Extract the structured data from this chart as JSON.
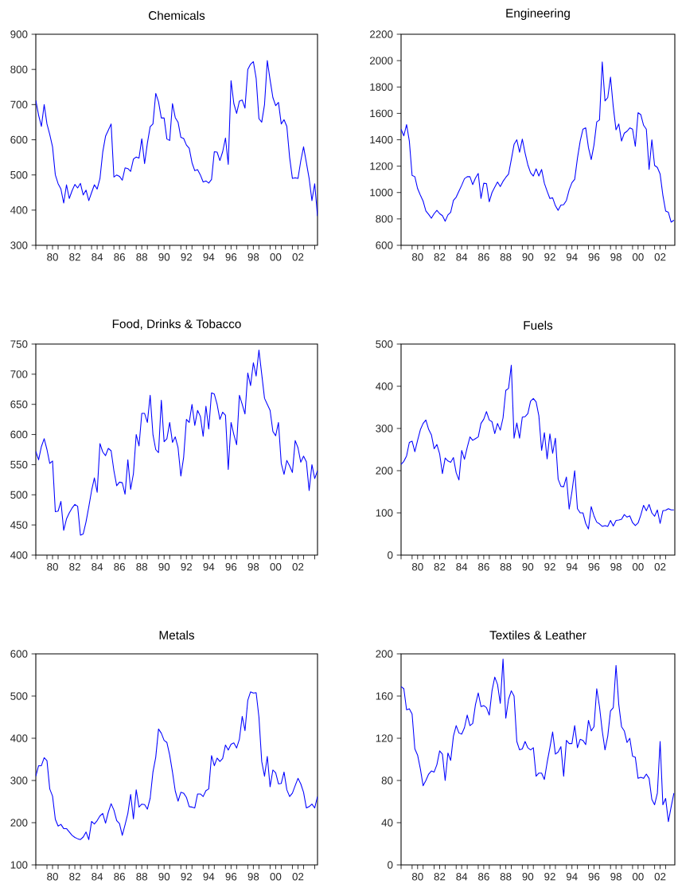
{
  "chart_data": [
    {
      "type": "line",
      "title": "Chemicals",
      "color": "#0000ff",
      "x": [
        "1979-01",
        "1979-04",
        "1979-07",
        "1979-10",
        "1980-01",
        "1980-04",
        "1980-07",
        "1980-10",
        "1981-01",
        "1981-04",
        "1981-07",
        "1981-10",
        "1982-01",
        "1982-04",
        "1982-07",
        "1982-10",
        "1983-01",
        "1983-04",
        "1983-07",
        "1983-10",
        "1984-01",
        "1984-04",
        "1984-07",
        "1984-10",
        "1985-01",
        "1985-04",
        "1985-07",
        "1985-10",
        "1986-01",
        "1986-04",
        "1986-07",
        "1986-10",
        "1987-01",
        "1987-04",
        "1987-07",
        "1987-10",
        "1988-01",
        "1988-04",
        "1988-07",
        "1988-10",
        "1989-01",
        "1989-04",
        "1989-07",
        "1989-10",
        "1990-01",
        "1990-04",
        "1990-07",
        "1990-10",
        "1991-01",
        "1991-04",
        "1991-07",
        "1991-10",
        "1992-01",
        "1992-04",
        "1992-07",
        "1992-10",
        "1993-01",
        "1993-04",
        "1993-07",
        "1993-10",
        "1994-01",
        "1994-04",
        "1994-07",
        "1994-10",
        "1995-01",
        "1995-04",
        "1995-07",
        "1995-10",
        "1996-01",
        "1996-04",
        "1996-07",
        "1996-10",
        "1997-01",
        "1997-04",
        "1997-07",
        "1997-10",
        "1998-01",
        "1998-04",
        "1998-07",
        "1998-10",
        "1999-01",
        "1999-04",
        "1999-07",
        "1999-10",
        "2000-01",
        "2000-04",
        "2000-07",
        "2000-10",
        "2001-01",
        "2001-04",
        "2001-07",
        "2001-10",
        "2002-01",
        "2002-04",
        "2002-07",
        "2002-10",
        "2003-01",
        "2003-04",
        "2003-07",
        "2003-10",
        "2004-01",
        "2004-04"
      ],
      "values": [
        712,
        670,
        638,
        700,
        645,
        615,
        580,
        500,
        475,
        460,
        420,
        472,
        433,
        455,
        473,
        463,
        476,
        443,
        457,
        427,
        450,
        472,
        460,
        490,
        565,
        610,
        627,
        645,
        494,
        500,
        496,
        485,
        520,
        518,
        510,
        545,
        551,
        548,
        603,
        532,
        590,
        637,
        645,
        732,
        708,
        662,
        662,
        602,
        598,
        703,
        663,
        650,
        607,
        604,
        585,
        576,
        535,
        512,
        515,
        500,
        480,
        483,
        477,
        487,
        566,
        565,
        541,
        566,
        605,
        530,
        768,
        703,
        675,
        710,
        713,
        690,
        800,
        815,
        822,
        775,
        660,
        650,
        700,
        825,
        770,
        720,
        697,
        706,
        645,
        657,
        638,
        550,
        490,
        492,
        490,
        540,
        580,
        535,
        490,
        427,
        475,
        383
      ],
      "xlim": [
        "1979-01",
        "2004-04"
      ],
      "xticks": [
        {
          "value": "1979",
          "label": null
        },
        {
          "value": "1980",
          "label": null
        },
        {
          "value": "1981",
          "label": null
        },
        {
          "value": "1982",
          "label": null
        },
        {
          "value": "1983",
          "label": null
        },
        {
          "value": "1984",
          "label": null
        },
        {
          "value": "1985",
          "label": null
        },
        {
          "value": "1986",
          "label": null
        },
        {
          "value": "1987",
          "label": null
        },
        {
          "value": "1988",
          "label": null
        },
        {
          "value": "1989",
          "label": null
        },
        {
          "value": "1990",
          "label": null
        },
        {
          "value": "1991",
          "label": null
        },
        {
          "value": "1992",
          "label": null
        },
        {
          "value": "1993",
          "label": null
        },
        {
          "value": "1994",
          "label": null
        },
        {
          "value": "1995",
          "label": null
        },
        {
          "value": "1996",
          "label": null
        },
        {
          "value": "1997",
          "label": null
        },
        {
          "value": "1998",
          "label": null
        },
        {
          "value": "1999",
          "label": null
        },
        {
          "value": "2000",
          "label": null
        },
        {
          "value": "2001",
          "label": null
        },
        {
          "value": "2002",
          "label": null
        },
        {
          "value": "2003",
          "label": null
        },
        {
          "value": "2004",
          "label": null
        },
        {
          "value": "1980-07",
          "label": "80"
        },
        {
          "value": "1982-07",
          "label": "82"
        },
        {
          "value": "1984-07",
          "label": "84"
        },
        {
          "value": "1986-07",
          "label": "86"
        },
        {
          "value": "1988-07",
          "label": "88"
        },
        {
          "value": "1990-07",
          "label": "90"
        },
        {
          "value": "1992-07",
          "label": "92"
        },
        {
          "value": "1994-07",
          "label": "94"
        },
        {
          "value": "1996-07",
          "label": "96"
        },
        {
          "value": "1998-07",
          "label": "98"
        },
        {
          "value": "2000-07",
          "label": "00"
        },
        {
          "value": "2002-07",
          "label": "02"
        }
      ],
      "ylim": [
        300,
        900
      ],
      "yticks": [
        300,
        400,
        500,
        600,
        700,
        800,
        900
      ]
    },
    {
      "type": "line",
      "title": "Engineering",
      "color": "#0000ff",
      "x": [
        "1979-01",
        "1979-04",
        "1979-07",
        "1979-10",
        "1980-01",
        "1980-04",
        "1980-07",
        "1980-10",
        "1981-01",
        "1981-04",
        "1981-07",
        "1981-10",
        "1982-01",
        "1982-04",
        "1982-07",
        "1982-10",
        "1983-01",
        "1983-04",
        "1983-07",
        "1983-10",
        "1984-01",
        "1984-04",
        "1984-07",
        "1984-10",
        "1985-01",
        "1985-04",
        "1985-07",
        "1985-10",
        "1986-01",
        "1986-04",
        "1986-07",
        "1986-10",
        "1987-01",
        "1987-04",
        "1987-07",
        "1987-10",
        "1988-01",
        "1988-04",
        "1988-07",
        "1988-10",
        "1989-01",
        "1989-04",
        "1989-07",
        "1989-10",
        "1990-01",
        "1990-04",
        "1990-07",
        "1990-10",
        "1991-01",
        "1991-04",
        "1991-07",
        "1991-10",
        "1992-01",
        "1992-04",
        "1992-07",
        "1992-10",
        "1993-01",
        "1993-04",
        "1993-07",
        "1993-10",
        "1994-01",
        "1994-04",
        "1994-07",
        "1994-10",
        "1995-01",
        "1995-04",
        "1995-07",
        "1995-10",
        "1996-01",
        "1996-04",
        "1996-07",
        "1996-10",
        "1997-01",
        "1997-04",
        "1997-07",
        "1997-10",
        "1998-01",
        "1998-04",
        "1998-07",
        "1998-10",
        "1999-01",
        "1999-04",
        "1999-07",
        "1999-10",
        "2000-01",
        "2000-04",
        "2000-07",
        "2000-10",
        "2001-01",
        "2001-04",
        "2001-07",
        "2001-10",
        "2002-01",
        "2002-04",
        "2002-07",
        "2002-10",
        "2003-01",
        "2003-04",
        "2003-07",
        "2003-10"
      ],
      "values": [
        1480,
        1430,
        1515,
        1390,
        1130,
        1120,
        1030,
        980,
        935,
        860,
        835,
        805,
        840,
        865,
        840,
        825,
        782,
        830,
        850,
        940,
        965,
        1010,
        1055,
        1105,
        1120,
        1120,
        1060,
        1110,
        1145,
        955,
        1070,
        1068,
        930,
        1000,
        1040,
        1080,
        1045,
        1085,
        1115,
        1140,
        1250,
        1365,
        1400,
        1305,
        1405,
        1300,
        1210,
        1150,
        1125,
        1180,
        1125,
        1175,
        1070,
        1010,
        955,
        960,
        900,
        865,
        905,
        908,
        940,
        1020,
        1075,
        1100,
        1260,
        1390,
        1480,
        1490,
        1340,
        1250,
        1360,
        1535,
        1550,
        1990,
        1695,
        1720,
        1875,
        1650,
        1475,
        1520,
        1390,
        1450,
        1465,
        1490,
        1480,
        1350,
        1605,
        1590,
        1510,
        1480,
        1175,
        1400,
        1205,
        1190,
        1140,
        980,
        860,
        850,
        775,
        790
      ],
      "xlim": [
        "1979-01",
        "2003-11"
      ],
      "xticks": [
        {
          "value": "1979",
          "label": null
        },
        {
          "value": "1980",
          "label": null
        },
        {
          "value": "1981",
          "label": null
        },
        {
          "value": "1982",
          "label": null
        },
        {
          "value": "1983",
          "label": null
        },
        {
          "value": "1984",
          "label": null
        },
        {
          "value": "1985",
          "label": null
        },
        {
          "value": "1986",
          "label": null
        },
        {
          "value": "1987",
          "label": null
        },
        {
          "value": "1988",
          "label": null
        },
        {
          "value": "1989",
          "label": null
        },
        {
          "value": "1990",
          "label": null
        },
        {
          "value": "1991",
          "label": null
        },
        {
          "value": "1992",
          "label": null
        },
        {
          "value": "1993",
          "label": null
        },
        {
          "value": "1994",
          "label": null
        },
        {
          "value": "1995",
          "label": null
        },
        {
          "value": "1996",
          "label": null
        },
        {
          "value": "1997",
          "label": null
        },
        {
          "value": "1998",
          "label": null
        },
        {
          "value": "1999",
          "label": null
        },
        {
          "value": "2000",
          "label": null
        },
        {
          "value": "2001",
          "label": null
        },
        {
          "value": "2002",
          "label": null
        },
        {
          "value": "2003",
          "label": null
        },
        {
          "value": "1980-07",
          "label": "80"
        },
        {
          "value": "1982-07",
          "label": "82"
        },
        {
          "value": "1984-07",
          "label": "84"
        },
        {
          "value": "1986-07",
          "label": "86"
        },
        {
          "value": "1988-07",
          "label": "88"
        },
        {
          "value": "1990-07",
          "label": "90"
        },
        {
          "value": "1992-07",
          "label": "92"
        },
        {
          "value": "1994-07",
          "label": "94"
        },
        {
          "value": "1996-07",
          "label": "96"
        },
        {
          "value": "1998-07",
          "label": "98"
        },
        {
          "value": "2000-07",
          "label": "00"
        },
        {
          "value": "2002-07",
          "label": "02"
        }
      ],
      "ylim": [
        600,
        2200
      ],
      "yticks": [
        600,
        800,
        1000,
        1200,
        1400,
        1600,
        1800,
        2000,
        2200
      ]
    },
    {
      "type": "line",
      "title": "Food, Drinks & Tobacco",
      "color": "#0000ff",
      "x": [
        "1979-01",
        "1979-04",
        "1979-07",
        "1979-10",
        "1980-01",
        "1980-04",
        "1980-07",
        "1980-10",
        "1981-01",
        "1981-04",
        "1981-07",
        "1981-10",
        "1982-01",
        "1982-04",
        "1982-07",
        "1982-10",
        "1983-01",
        "1983-04",
        "1983-07",
        "1983-10",
        "1984-01",
        "1984-04",
        "1984-07",
        "1984-10",
        "1985-01",
        "1985-04",
        "1985-07",
        "1985-10",
        "1986-01",
        "1986-04",
        "1986-07",
        "1986-10",
        "1987-01",
        "1987-04",
        "1987-07",
        "1987-10",
        "1988-01",
        "1988-04",
        "1988-07",
        "1988-10",
        "1989-01",
        "1989-04",
        "1989-07",
        "1989-10",
        "1990-01",
        "1990-04",
        "1990-07",
        "1990-10",
        "1991-01",
        "1991-04",
        "1991-07",
        "1991-10",
        "1992-01",
        "1992-04",
        "1992-07",
        "1992-10",
        "1993-01",
        "1993-04",
        "1993-07",
        "1993-10",
        "1994-01",
        "1994-04",
        "1994-07",
        "1994-10",
        "1995-01",
        "1995-04",
        "1995-07",
        "1995-10",
        "1996-01",
        "1996-04",
        "1996-07",
        "1996-10",
        "1997-01",
        "1997-04",
        "1997-07",
        "1997-10",
        "1998-01",
        "1998-04",
        "1998-07",
        "1998-10",
        "1999-01",
        "1999-04",
        "1999-07",
        "1999-10",
        "2000-01",
        "2000-04",
        "2000-07",
        "2000-10",
        "2001-01",
        "2001-04",
        "2001-07",
        "2001-10",
        "2002-01",
        "2002-04",
        "2002-07",
        "2002-10",
        "2003-01",
        "2003-04",
        "2003-07",
        "2003-10",
        "2004-01",
        "2004-04"
      ],
      "values": [
        572,
        558,
        580,
        593,
        575,
        552,
        556,
        472,
        473,
        489,
        441,
        460,
        470,
        478,
        484,
        481,
        433,
        435,
        455,
        480,
        507,
        528,
        504,
        585,
        571,
        565,
        577,
        573,
        540,
        515,
        521,
        520,
        501,
        558,
        509,
        535,
        600,
        581,
        635,
        635,
        620,
        665,
        600,
        575,
        570,
        657,
        588,
        593,
        620,
        587,
        596,
        578,
        531,
        562,
        625,
        620,
        650,
        615,
        640,
        630,
        597,
        647,
        609,
        669,
        667,
        650,
        625,
        637,
        632,
        542,
        620,
        600,
        583,
        665,
        650,
        634,
        702,
        681,
        719,
        697,
        740,
        700,
        660,
        650,
        640,
        605,
        598,
        620,
        552,
        534,
        557,
        548,
        537,
        590,
        578,
        554,
        564,
        555,
        507,
        550,
        527,
        540
      ],
      "xlim": [
        "1979-01",
        "2004-04"
      ],
      "xticks": [
        {
          "value": "1979",
          "label": null
        },
        {
          "value": "1980",
          "label": null
        },
        {
          "value": "1981",
          "label": null
        },
        {
          "value": "1982",
          "label": null
        },
        {
          "value": "1983",
          "label": null
        },
        {
          "value": "1984",
          "label": null
        },
        {
          "value": "1985",
          "label": null
        },
        {
          "value": "1986",
          "label": null
        },
        {
          "value": "1987",
          "label": null
        },
        {
          "value": "1988",
          "label": null
        },
        {
          "value": "1989",
          "label": null
        },
        {
          "value": "1990",
          "label": null
        },
        {
          "value": "1991",
          "label": null
        },
        {
          "value": "1992",
          "label": null
        },
        {
          "value": "1993",
          "label": null
        },
        {
          "value": "1994",
          "label": null
        },
        {
          "value": "1995",
          "label": null
        },
        {
          "value": "1996",
          "label": null
        },
        {
          "value": "1997",
          "label": null
        },
        {
          "value": "1998",
          "label": null
        },
        {
          "value": "1999",
          "label": null
        },
        {
          "value": "2000",
          "label": null
        },
        {
          "value": "2001",
          "label": null
        },
        {
          "value": "2002",
          "label": null
        },
        {
          "value": "2003",
          "label": null
        },
        {
          "value": "2004",
          "label": null
        },
        {
          "value": "1980-07",
          "label": "80"
        },
        {
          "value": "1982-07",
          "label": "82"
        },
        {
          "value": "1984-07",
          "label": "84"
        },
        {
          "value": "1986-07",
          "label": "86"
        },
        {
          "value": "1988-07",
          "label": "88"
        },
        {
          "value": "1990-07",
          "label": "90"
        },
        {
          "value": "1992-07",
          "label": "92"
        },
        {
          "value": "1994-07",
          "label": "94"
        },
        {
          "value": "1996-07",
          "label": "96"
        },
        {
          "value": "1998-07",
          "label": "98"
        },
        {
          "value": "2000-07",
          "label": "00"
        },
        {
          "value": "2002-07",
          "label": "02"
        }
      ],
      "ylim": [
        400,
        750
      ],
      "yticks": [
        400,
        450,
        500,
        550,
        600,
        650,
        700,
        750
      ]
    },
    {
      "type": "line",
      "title": "Fuels",
      "color": "#0000ff",
      "x": [
        "1979-01",
        "1979-04",
        "1979-07",
        "1979-10",
        "1980-01",
        "1980-04",
        "1980-07",
        "1980-10",
        "1981-01",
        "1981-04",
        "1981-07",
        "1981-10",
        "1982-01",
        "1982-04",
        "1982-07",
        "1982-10",
        "1983-01",
        "1983-04",
        "1983-07",
        "1983-10",
        "1984-01",
        "1984-04",
        "1984-07",
        "1984-10",
        "1985-01",
        "1985-04",
        "1985-07",
        "1985-10",
        "1986-01",
        "1986-04",
        "1986-07",
        "1986-10",
        "1987-01",
        "1987-04",
        "1987-07",
        "1987-10",
        "1988-01",
        "1988-04",
        "1988-07",
        "1988-10",
        "1989-01",
        "1989-04",
        "1989-07",
        "1989-10",
        "1990-01",
        "1990-04",
        "1990-07",
        "1990-10",
        "1991-01",
        "1991-04",
        "1991-07",
        "1991-10",
        "1992-01",
        "1992-04",
        "1992-07",
        "1992-10",
        "1993-01",
        "1993-04",
        "1993-07",
        "1993-10",
        "1994-01",
        "1994-04",
        "1994-07",
        "1994-10",
        "1995-01",
        "1995-04",
        "1995-07",
        "1995-10",
        "1996-01",
        "1996-04",
        "1996-07",
        "1996-10",
        "1997-01",
        "1997-04",
        "1997-07",
        "1997-10",
        "1998-01",
        "1998-04",
        "1998-07",
        "1998-10",
        "1999-01",
        "1999-04",
        "1999-07",
        "1999-10",
        "2000-01",
        "2000-04",
        "2000-07",
        "2000-10",
        "2001-01",
        "2001-04",
        "2001-07",
        "2001-10",
        "2002-01",
        "2002-04",
        "2002-07",
        "2002-10",
        "2003-01",
        "2003-04",
        "2003-07",
        "2003-10"
      ],
      "values": [
        215,
        222,
        235,
        267,
        270,
        245,
        272,
        297,
        312,
        320,
        298,
        285,
        252,
        262,
        240,
        193,
        230,
        223,
        220,
        231,
        195,
        178,
        248,
        227,
        255,
        280,
        272,
        276,
        280,
        312,
        322,
        340,
        320,
        316,
        288,
        312,
        296,
        325,
        390,
        395,
        450,
        277,
        313,
        277,
        327,
        328,
        335,
        365,
        371,
        363,
        330,
        248,
        290,
        228,
        287,
        241,
        277,
        180,
        163,
        162,
        185,
        109,
        150,
        200,
        110,
        100,
        100,
        75,
        62,
        115,
        93,
        78,
        74,
        68,
        70,
        68,
        82,
        69,
        82,
        83,
        85,
        96,
        90,
        93,
        77,
        70,
        76,
        95,
        118,
        105,
        120,
        100,
        92,
        107,
        75,
        105,
        106,
        110,
        107,
        107
      ],
      "xlim": [
        "1979-01",
        "2003-11"
      ],
      "xticks": [
        {
          "value": "1979",
          "label": null
        },
        {
          "value": "1980",
          "label": null
        },
        {
          "value": "1981",
          "label": null
        },
        {
          "value": "1982",
          "label": null
        },
        {
          "value": "1983",
          "label": null
        },
        {
          "value": "1984",
          "label": null
        },
        {
          "value": "1985",
          "label": null
        },
        {
          "value": "1986",
          "label": null
        },
        {
          "value": "1987",
          "label": null
        },
        {
          "value": "1988",
          "label": null
        },
        {
          "value": "1989",
          "label": null
        },
        {
          "value": "1990",
          "label": null
        },
        {
          "value": "1991",
          "label": null
        },
        {
          "value": "1992",
          "label": null
        },
        {
          "value": "1993",
          "label": null
        },
        {
          "value": "1994",
          "label": null
        },
        {
          "value": "1995",
          "label": null
        },
        {
          "value": "1996",
          "label": null
        },
        {
          "value": "1997",
          "label": null
        },
        {
          "value": "1998",
          "label": null
        },
        {
          "value": "1999",
          "label": null
        },
        {
          "value": "2000",
          "label": null
        },
        {
          "value": "2001",
          "label": null
        },
        {
          "value": "2002",
          "label": null
        },
        {
          "value": "2003",
          "label": null
        },
        {
          "value": "1980-07",
          "label": "80"
        },
        {
          "value": "1982-07",
          "label": "82"
        },
        {
          "value": "1984-07",
          "label": "84"
        },
        {
          "value": "1986-07",
          "label": "86"
        },
        {
          "value": "1988-07",
          "label": "88"
        },
        {
          "value": "1990-07",
          "label": "90"
        },
        {
          "value": "1992-07",
          "label": "92"
        },
        {
          "value": "1994-07",
          "label": "94"
        },
        {
          "value": "1996-07",
          "label": "96"
        },
        {
          "value": "1998-07",
          "label": "98"
        },
        {
          "value": "2000-07",
          "label": "00"
        },
        {
          "value": "2002-07",
          "label": "02"
        }
      ],
      "ylim": [
        0,
        500
      ],
      "yticks": [
        0,
        100,
        200,
        300,
        400,
        500
      ]
    },
    {
      "type": "line",
      "title": "Metals",
      "color": "#0000ff",
      "x": [
        "1979-01",
        "1979-04",
        "1979-07",
        "1979-10",
        "1980-01",
        "1980-04",
        "1980-07",
        "1980-10",
        "1981-01",
        "1981-04",
        "1981-07",
        "1981-10",
        "1982-01",
        "1982-04",
        "1982-07",
        "1982-10",
        "1983-01",
        "1983-04",
        "1983-07",
        "1983-10",
        "1984-01",
        "1984-04",
        "1984-07",
        "1984-10",
        "1985-01",
        "1985-04",
        "1985-07",
        "1985-10",
        "1986-01",
        "1986-04",
        "1986-07",
        "1986-10",
        "1987-01",
        "1987-04",
        "1987-07",
        "1987-10",
        "1988-01",
        "1988-04",
        "1988-07",
        "1988-10",
        "1989-01",
        "1989-04",
        "1989-07",
        "1989-10",
        "1990-01",
        "1990-04",
        "1990-07",
        "1990-10",
        "1991-01",
        "1991-04",
        "1991-07",
        "1991-10",
        "1992-01",
        "1992-04",
        "1992-07",
        "1992-10",
        "1993-01",
        "1993-04",
        "1993-07",
        "1993-10",
        "1994-01",
        "1994-04",
        "1994-07",
        "1994-10",
        "1995-01",
        "1995-04",
        "1995-07",
        "1995-10",
        "1996-01",
        "1996-04",
        "1996-07",
        "1996-10",
        "1997-01",
        "1997-04",
        "1997-07",
        "1997-10",
        "1998-01",
        "1998-04",
        "1998-07",
        "1998-10",
        "1999-01",
        "1999-04",
        "1999-07",
        "1999-10",
        "2000-01",
        "2000-04",
        "2000-07",
        "2000-10",
        "2001-01",
        "2001-04",
        "2001-07",
        "2001-10",
        "2002-01",
        "2002-04",
        "2002-07",
        "2002-10",
        "2003-01",
        "2003-04",
        "2003-07",
        "2003-10",
        "2004-01",
        "2004-04"
      ],
      "values": [
        310,
        335,
        335,
        354,
        347,
        280,
        263,
        208,
        192,
        196,
        186,
        186,
        178,
        170,
        165,
        162,
        160,
        166,
        178,
        160,
        203,
        197,
        205,
        216,
        222,
        199,
        225,
        245,
        230,
        205,
        198,
        170,
        195,
        222,
        267,
        209,
        278,
        237,
        244,
        243,
        232,
        258,
        320,
        355,
        422,
        412,
        395,
        390,
        360,
        320,
        275,
        251,
        272,
        270,
        260,
        238,
        237,
        235,
        268,
        268,
        262,
        276,
        280,
        359,
        335,
        353,
        345,
        352,
        384,
        372,
        386,
        389,
        377,
        398,
        452,
        418,
        490,
        510,
        507,
        508,
        450,
        345,
        310,
        357,
        285,
        325,
        318,
        292,
        293,
        320,
        278,
        262,
        270,
        288,
        305,
        292,
        272,
        235,
        238,
        244,
        235,
        262
      ],
      "xlim": [
        "1979-01",
        "2004-04"
      ],
      "xticks": [
        {
          "value": "1979",
          "label": null
        },
        {
          "value": "1980",
          "label": null
        },
        {
          "value": "1981",
          "label": null
        },
        {
          "value": "1982",
          "label": null
        },
        {
          "value": "1983",
          "label": null
        },
        {
          "value": "1984",
          "label": null
        },
        {
          "value": "1985",
          "label": null
        },
        {
          "value": "1986",
          "label": null
        },
        {
          "value": "1987",
          "label": null
        },
        {
          "value": "1988",
          "label": null
        },
        {
          "value": "1989",
          "label": null
        },
        {
          "value": "1990",
          "label": null
        },
        {
          "value": "1991",
          "label": null
        },
        {
          "value": "1992",
          "label": null
        },
        {
          "value": "1993",
          "label": null
        },
        {
          "value": "1994",
          "label": null
        },
        {
          "value": "1995",
          "label": null
        },
        {
          "value": "1996",
          "label": null
        },
        {
          "value": "1997",
          "label": null
        },
        {
          "value": "1998",
          "label": null
        },
        {
          "value": "1999",
          "label": null
        },
        {
          "value": "2000",
          "label": null
        },
        {
          "value": "2001",
          "label": null
        },
        {
          "value": "2002",
          "label": null
        },
        {
          "value": "2003",
          "label": null
        },
        {
          "value": "2004",
          "label": null
        },
        {
          "value": "1980-07",
          "label": "80"
        },
        {
          "value": "1982-07",
          "label": "82"
        },
        {
          "value": "1984-07",
          "label": "84"
        },
        {
          "value": "1986-07",
          "label": "86"
        },
        {
          "value": "1988-07",
          "label": "88"
        },
        {
          "value": "1990-07",
          "label": "90"
        },
        {
          "value": "1992-07",
          "label": "92"
        },
        {
          "value": "1994-07",
          "label": "94"
        },
        {
          "value": "1996-07",
          "label": "96"
        },
        {
          "value": "1998-07",
          "label": "98"
        },
        {
          "value": "2000-07",
          "label": "00"
        },
        {
          "value": "2002-07",
          "label": "02"
        }
      ],
      "ylim": [
        100,
        600
      ],
      "yticks": [
        100,
        200,
        300,
        400,
        500,
        600
      ]
    },
    {
      "type": "line",
      "title": "Textiles & Leather",
      "color": "#0000ff",
      "x": [
        "1979-01",
        "1979-04",
        "1979-07",
        "1979-10",
        "1980-01",
        "1980-04",
        "1980-07",
        "1980-10",
        "1981-01",
        "1981-04",
        "1981-07",
        "1981-10",
        "1982-01",
        "1982-04",
        "1982-07",
        "1982-10",
        "1983-01",
        "1983-04",
        "1983-07",
        "1983-10",
        "1984-01",
        "1984-04",
        "1984-07",
        "1984-10",
        "1985-01",
        "1985-04",
        "1985-07",
        "1985-10",
        "1986-01",
        "1986-04",
        "1986-07",
        "1986-10",
        "1987-01",
        "1987-04",
        "1987-07",
        "1987-10",
        "1988-01",
        "1988-04",
        "1988-07",
        "1988-10",
        "1989-01",
        "1989-04",
        "1989-07",
        "1989-10",
        "1990-01",
        "1990-04",
        "1990-07",
        "1990-10",
        "1991-01",
        "1991-04",
        "1991-07",
        "1991-10",
        "1992-01",
        "1992-04",
        "1992-07",
        "1992-10",
        "1993-01",
        "1993-04",
        "1993-07",
        "1993-10",
        "1994-01",
        "1994-04",
        "1994-07",
        "1994-10",
        "1995-01",
        "1995-04",
        "1995-07",
        "1995-10",
        "1996-01",
        "1996-04",
        "1996-07",
        "1996-10",
        "1997-01",
        "1997-04",
        "1997-07",
        "1997-10",
        "1998-01",
        "1998-04",
        "1998-07",
        "1998-10",
        "1999-01",
        "1999-04",
        "1999-07",
        "1999-10",
        "2000-01",
        "2000-04",
        "2000-07",
        "2000-10",
        "2001-01",
        "2001-04",
        "2001-07",
        "2001-10",
        "2002-01",
        "2002-04",
        "2002-07",
        "2002-10",
        "2003-01",
        "2003-04",
        "2003-07",
        "2003-10"
      ],
      "values": [
        169,
        167,
        147,
        148,
        143,
        110,
        104,
        91,
        75,
        80,
        86,
        89,
        88,
        95,
        108,
        105,
        80,
        106,
        99,
        122,
        132,
        125,
        124,
        130,
        142,
        132,
        134,
        152,
        163,
        150,
        151,
        149,
        142,
        165,
        178,
        171,
        153,
        195,
        139,
        157,
        165,
        160,
        117,
        109,
        110,
        117,
        111,
        109,
        111,
        84,
        87,
        87,
        81,
        97,
        111,
        126,
        105,
        107,
        112,
        84,
        118,
        115,
        115,
        132,
        111,
        119,
        118,
        114,
        137,
        127,
        131,
        167,
        150,
        127,
        109,
        122,
        146,
        149,
        189,
        152,
        131,
        127,
        116,
        120,
        103,
        102,
        82,
        83,
        82,
        86,
        82,
        62,
        57,
        68,
        117,
        57,
        63,
        41,
        55,
        68
      ],
      "xlim": [
        "1979-01",
        "2003-11"
      ],
      "xticks": [
        {
          "value": "1979",
          "label": null
        },
        {
          "value": "1980",
          "label": null
        },
        {
          "value": "1981",
          "label": null
        },
        {
          "value": "1982",
          "label": null
        },
        {
          "value": "1983",
          "label": null
        },
        {
          "value": "1984",
          "label": null
        },
        {
          "value": "1985",
          "label": null
        },
        {
          "value": "1986",
          "label": null
        },
        {
          "value": "1987",
          "label": null
        },
        {
          "value": "1988",
          "label": null
        },
        {
          "value": "1989",
          "label": null
        },
        {
          "value": "1990",
          "label": null
        },
        {
          "value": "1991",
          "label": null
        },
        {
          "value": "1992",
          "label": null
        },
        {
          "value": "1993",
          "label": null
        },
        {
          "value": "1994",
          "label": null
        },
        {
          "value": "1995",
          "label": null
        },
        {
          "value": "1996",
          "label": null
        },
        {
          "value": "1997",
          "label": null
        },
        {
          "value": "1998",
          "label": null
        },
        {
          "value": "1999",
          "label": null
        },
        {
          "value": "2000",
          "label": null
        },
        {
          "value": "2001",
          "label": null
        },
        {
          "value": "2002",
          "label": null
        },
        {
          "value": "2003",
          "label": null
        },
        {
          "value": "1980-07",
          "label": "80"
        },
        {
          "value": "1982-07",
          "label": "82"
        },
        {
          "value": "1984-07",
          "label": "84"
        },
        {
          "value": "1986-07",
          "label": "86"
        },
        {
          "value": "1988-07",
          "label": "88"
        },
        {
          "value": "1990-07",
          "label": "90"
        },
        {
          "value": "1992-07",
          "label": "92"
        },
        {
          "value": "1994-07",
          "label": "94"
        },
        {
          "value": "1996-07",
          "label": "96"
        },
        {
          "value": "1998-07",
          "label": "98"
        },
        {
          "value": "2000-07",
          "label": "00"
        },
        {
          "value": "2002-07",
          "label": "02"
        }
      ],
      "ylim": [
        0,
        200
      ],
      "yticks": [
        0,
        40,
        80,
        120,
        160,
        200
      ]
    }
  ]
}
